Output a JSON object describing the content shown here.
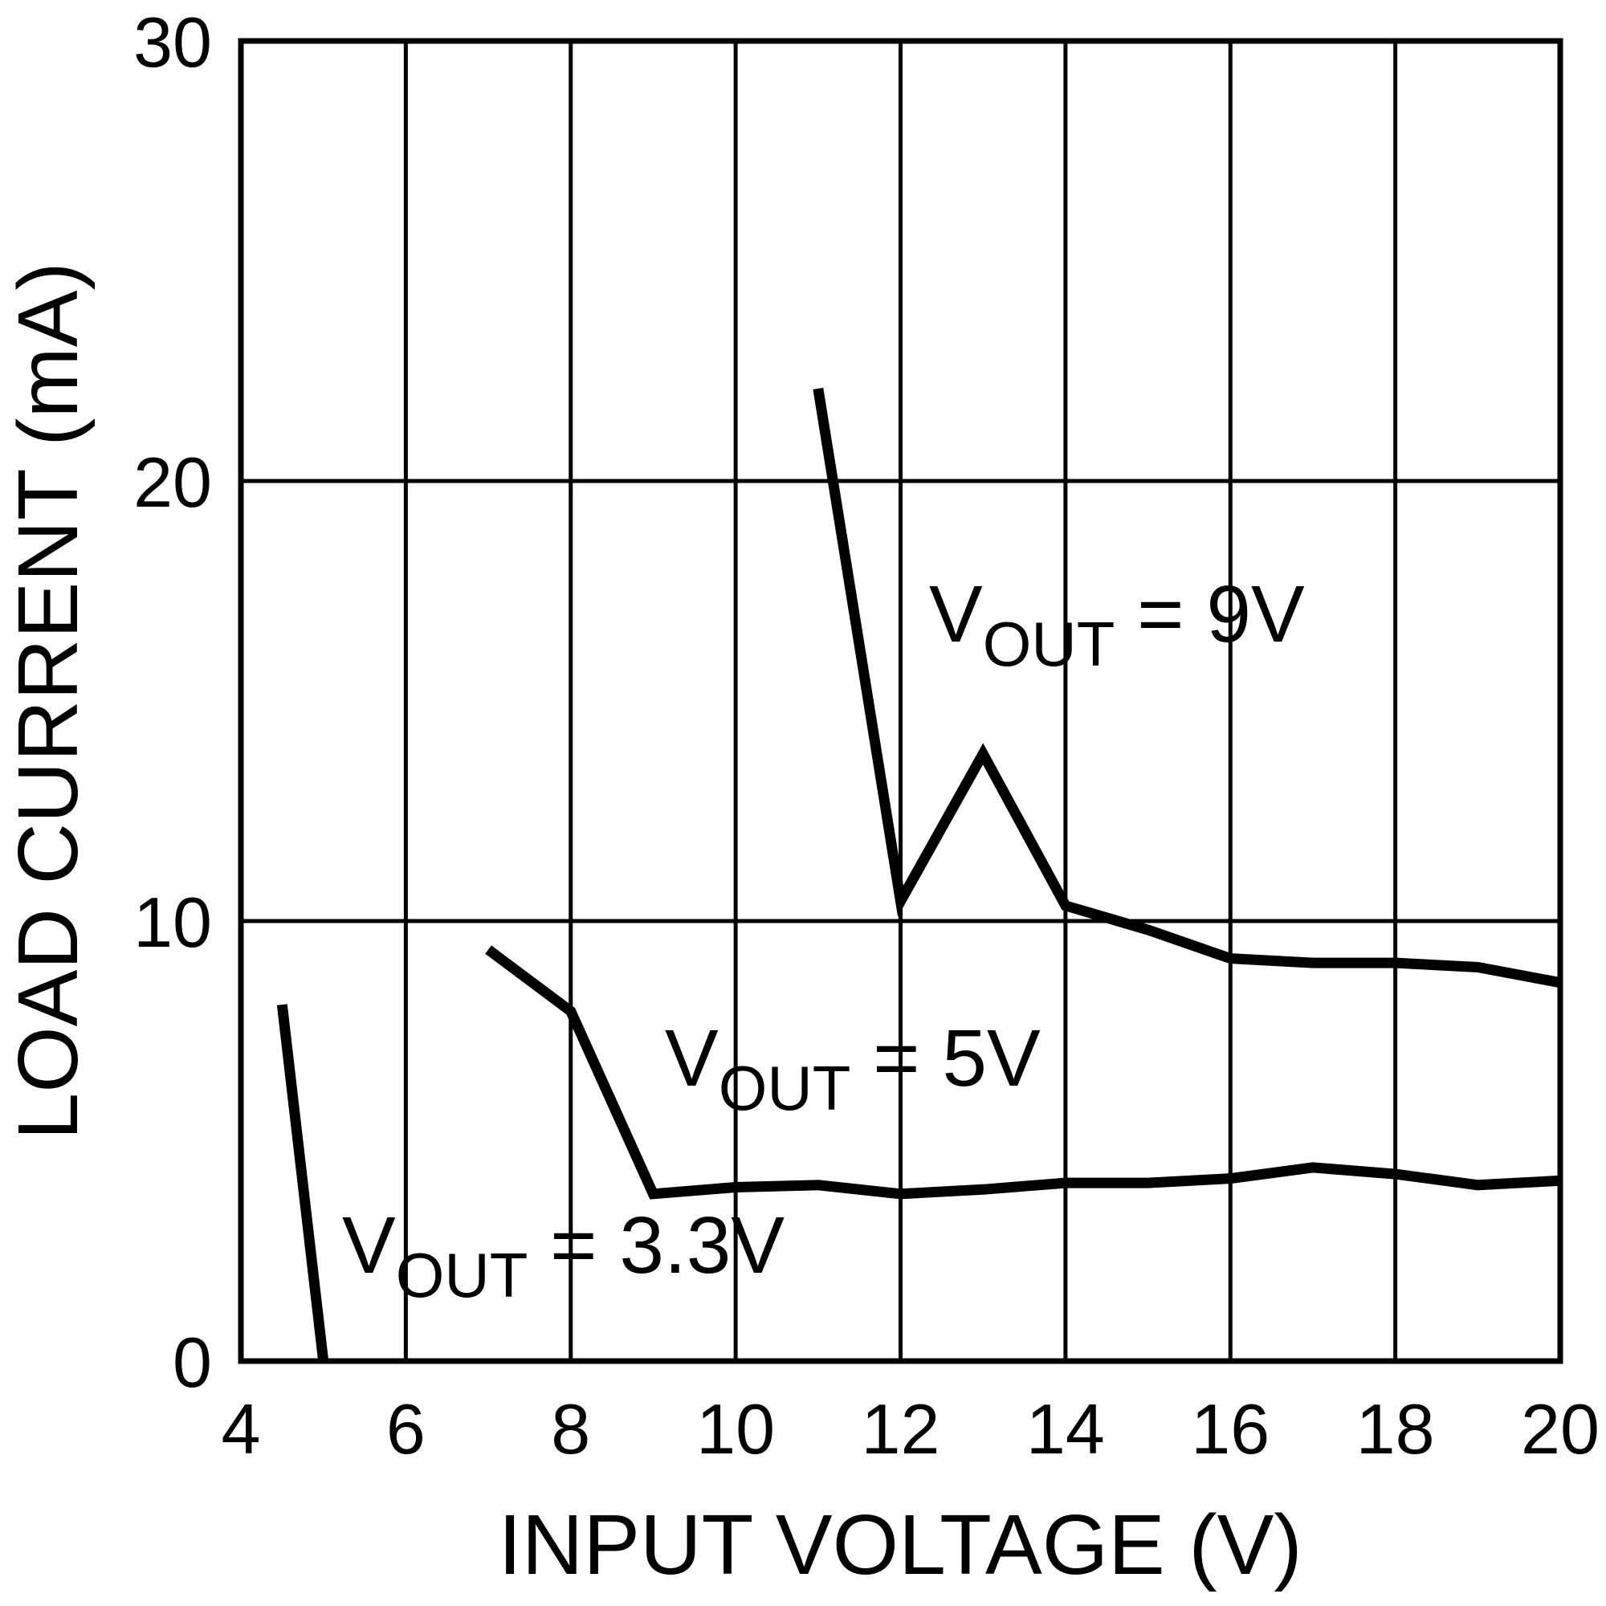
{
  "chart_data": {
    "type": "line",
    "xlabel": "INPUT VOLTAGE (V)",
    "ylabel": "LOAD CURRENT (mA)",
    "xlim": [
      4,
      20
    ],
    "xticks": [
      4,
      6,
      8,
      10,
      12,
      14,
      16,
      18,
      20
    ],
    "ylim": [
      0,
      30
    ],
    "yticks": [
      0,
      10,
      20,
      30
    ],
    "grid": true,
    "series": [
      {
        "color": "#000000",
        "x": [
          4.5,
          5
        ],
        "values": [
          8.1,
          0
        ]
      },
      {
        "color": "#000000",
        "x": [
          7,
          8,
          9,
          10,
          11,
          12,
          13,
          14,
          15,
          16,
          17,
          18,
          19,
          20
        ],
        "values": [
          9.35,
          7.95,
          3.8,
          3.95,
          4.0,
          3.8,
          3.9,
          4.05,
          4.05,
          4.15,
          4.4,
          4.25,
          4.0,
          4.1
        ]
      },
      {
        "color": "#000000",
        "x": [
          11,
          12,
          13,
          14,
          15,
          16,
          17,
          18,
          19,
          20
        ],
        "values": [
          22.1,
          10.45,
          13.8,
          10.35,
          9.8,
          9.15,
          9.05,
          9.05,
          8.95,
          8.6
        ]
      }
    ],
    "annotations": [
      {
        "text": "V",
        "sub": "OUT",
        "rest": " = 3.3V"
      },
      {
        "text": "V",
        "sub": "OUT",
        "rest": " = 5V"
      },
      {
        "text": "V",
        "sub": "OUT",
        "rest": " = 9V"
      }
    ]
  }
}
